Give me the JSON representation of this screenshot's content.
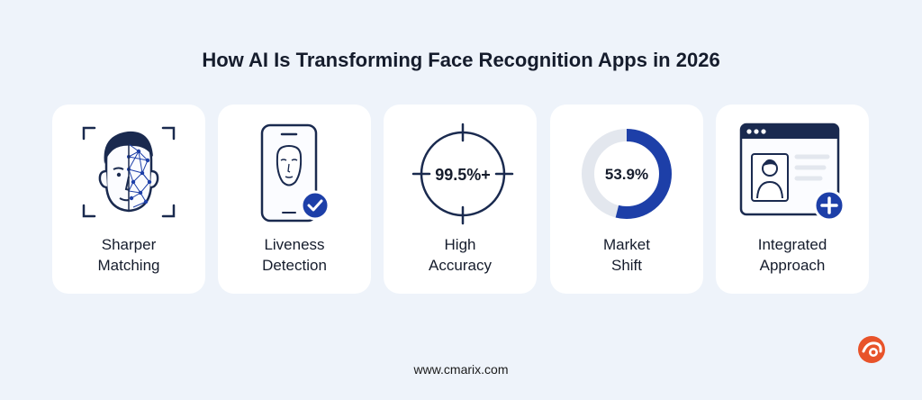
{
  "title": "How AI Is Transforming Face Recognition Apps in 2026",
  "cards": [
    {
      "line1": "Sharper",
      "line2": "Matching",
      "icon": "face-scan-icon"
    },
    {
      "line1": "Liveness",
      "line2": "Detection",
      "icon": "phone-face-check-icon"
    },
    {
      "line1": "High",
      "line2": "Accuracy",
      "icon": "crosshair-icon",
      "metric": "99.5%+"
    },
    {
      "line1": "Market",
      "line2": "Shift",
      "icon": "donut-gauge-icon",
      "metric": "53.9%",
      "gauge_fraction": 0.539
    },
    {
      "line1": "Integrated",
      "line2": "Approach",
      "icon": "browser-profile-add-icon"
    }
  ],
  "footer": "www.cmarix.com",
  "colors": {
    "accent": "#1d3fa8",
    "dark_navy": "#1a2a4f",
    "background": "#eef3fa",
    "card": "#ffffff",
    "logo": "#e8532a"
  }
}
